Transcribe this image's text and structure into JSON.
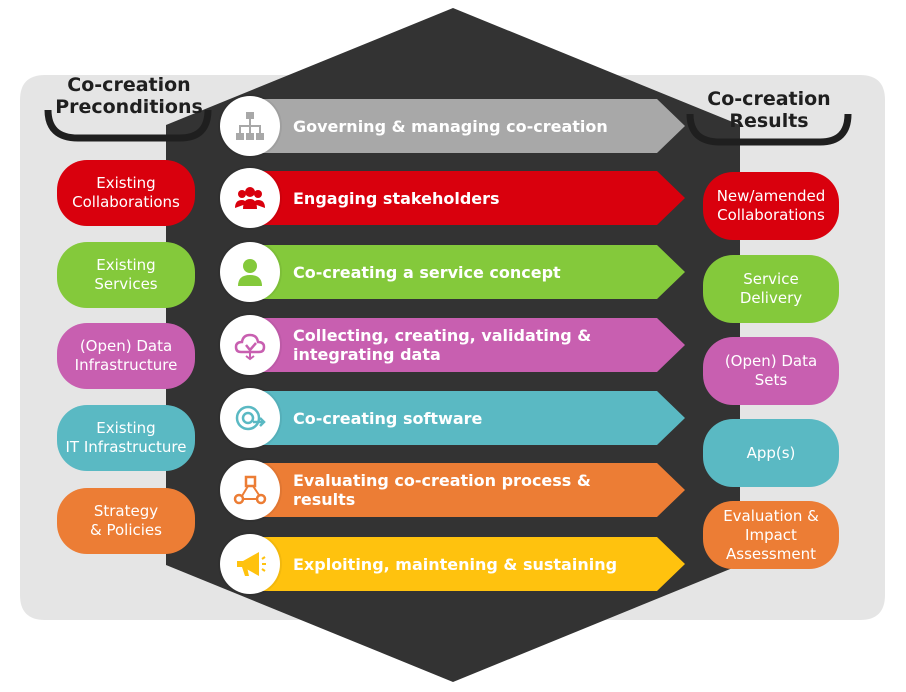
{
  "left_heading": "Co-creation\nPreconditions",
  "right_heading": "Co-creation\nResults",
  "colors": {
    "gray": "#a8a8a8",
    "red": "#d9000d",
    "green": "#84c93b",
    "magenta": "#c85fb0",
    "teal": "#5ab9c3",
    "orange": "#ec7d35",
    "yellow": "#ffc20e",
    "hexagon": "#333333",
    "frame": "#e5e5e5"
  },
  "steps": [
    {
      "label": "Governing & managing co-creation",
      "icon": "org-chart-icon",
      "color": "#a8a8a8"
    },
    {
      "label": "Engaging stakeholders",
      "icon": "people-group-icon",
      "color": "#d9000d"
    },
    {
      "label": "Co-creating a service concept",
      "icon": "person-icon",
      "color": "#84c93b"
    },
    {
      "label": "Collecting, creating, validating &\nintegrating data",
      "icon": "cloud-data-icon",
      "color": "#c85fb0"
    },
    {
      "label": "Co-creating software",
      "icon": "software-cycle-icon",
      "color": "#5ab9c3"
    },
    {
      "label": "Evaluating co-creation process & results",
      "icon": "process-flow-icon",
      "color": "#ec7d35"
    },
    {
      "label": "Exploiting, maintening & sustaining",
      "icon": "megaphone-icon",
      "color": "#ffc20e"
    }
  ],
  "preconditions": [
    {
      "label": "Existing\nCollaborations",
      "color": "#d9000d"
    },
    {
      "label": "Existing\nServices",
      "color": "#84c93b"
    },
    {
      "label": "(Open) Data\nInfrastructure",
      "color": "#c85fb0"
    },
    {
      "label": "Existing\nIT Infrastructure",
      "color": "#5ab9c3"
    },
    {
      "label": "Strategy\n& Policies",
      "color": "#ec7d35"
    }
  ],
  "results": [
    {
      "label": "New/amended\nCollaborations",
      "color": "#d9000d"
    },
    {
      "label": "Service\nDelivery",
      "color": "#84c93b"
    },
    {
      "label": "(Open) Data\nSets",
      "color": "#c85fb0"
    },
    {
      "label": "App(s)",
      "color": "#5ab9c3"
    },
    {
      "label": "Evaluation &\nImpact\nAssessment",
      "color": "#ec7d35"
    }
  ]
}
